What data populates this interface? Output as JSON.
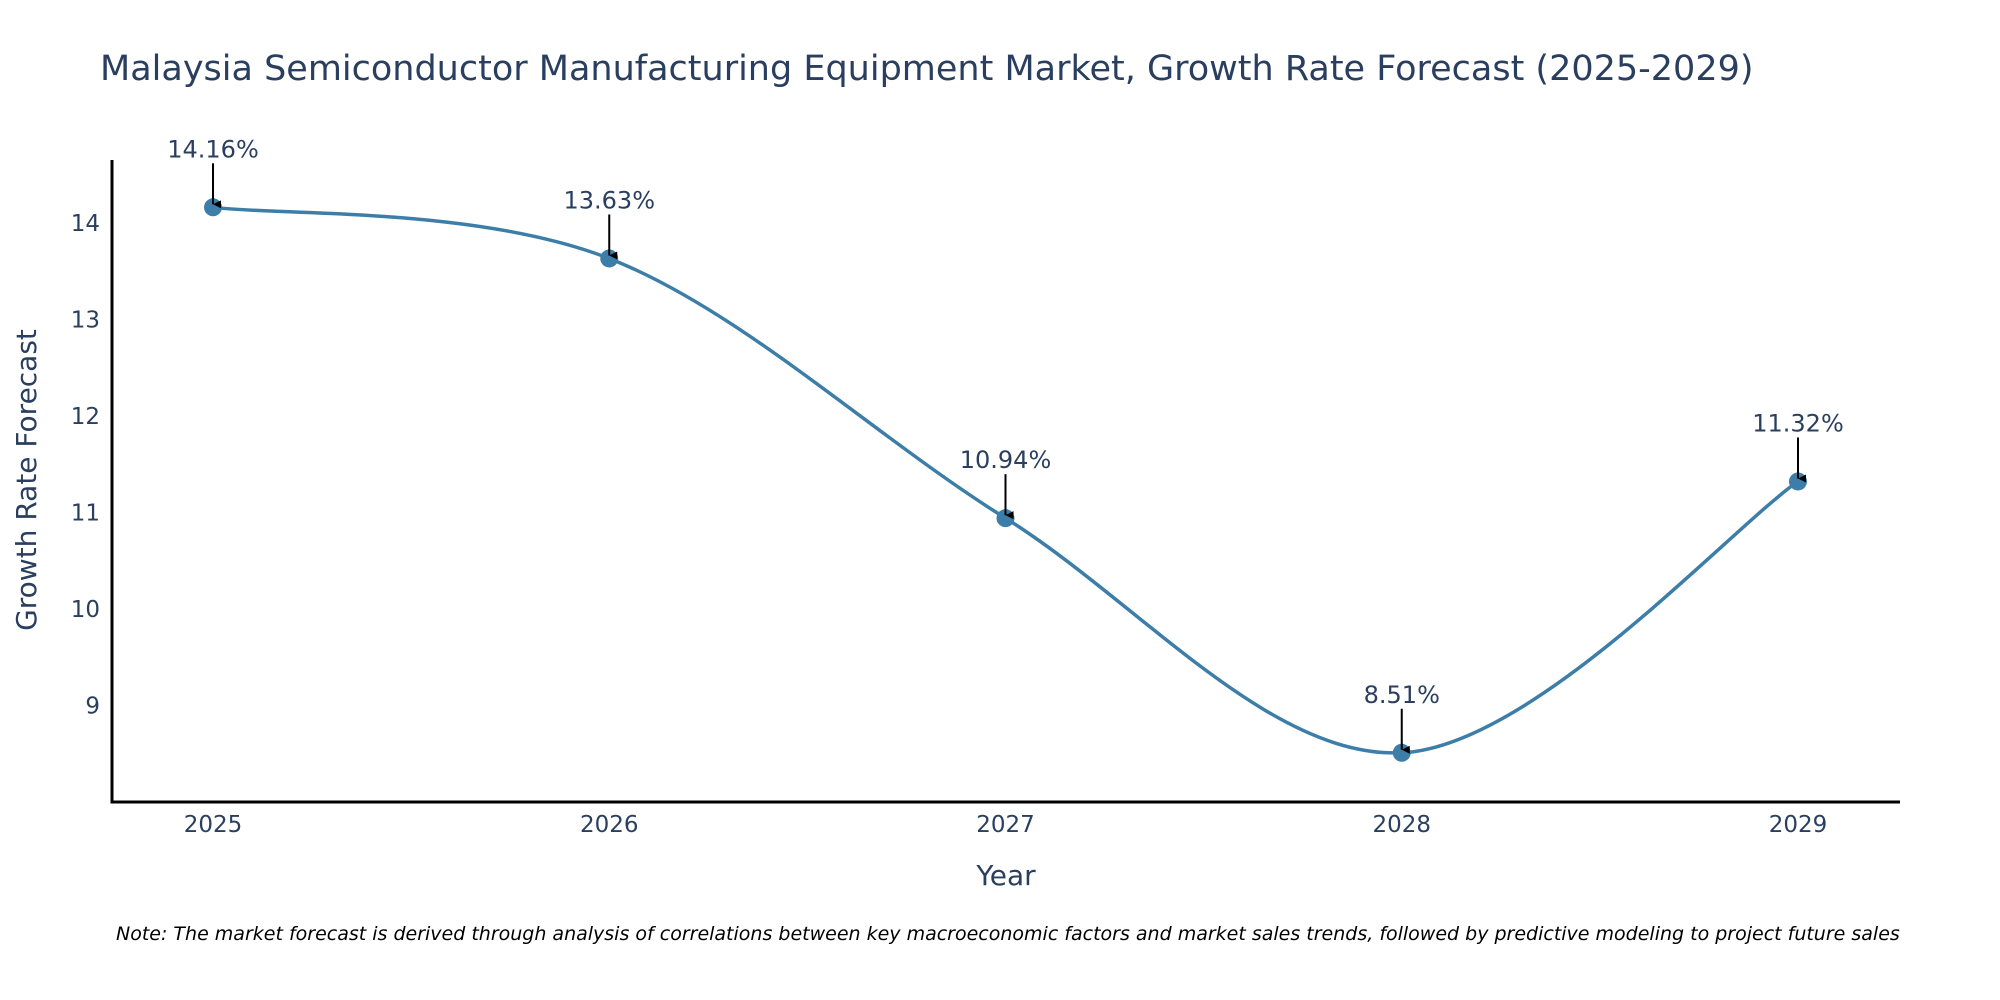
{
  "chart_data": {
    "type": "line",
    "title": "Malaysia Semiconductor Manufacturing Equipment Market, Growth Rate Forecast (2025-2029)",
    "xlabel": "Year",
    "ylabel": "Growth Rate Forecast",
    "categories": [
      "2025",
      "2026",
      "2027",
      "2028",
      "2029"
    ],
    "values": [
      14.16,
      13.63,
      10.94,
      8.51,
      11.32
    ],
    "data_labels": [
      "14.16%",
      "13.63%",
      "10.94%",
      "8.51%",
      "11.32%"
    ],
    "y_ticks": [
      9,
      10,
      11,
      12,
      13,
      14
    ],
    "ylim": [
      8,
      14.65
    ],
    "grid": false,
    "line_shape": "smooth spline",
    "colors": {
      "line": "#3d7ea9",
      "marker": "#3d7ea9",
      "arrow": "#000000",
      "axis": "#000000"
    }
  },
  "note": "Note: The market forecast is derived through analysis of correlations between key macroeconomic factors and market sales trends, followed by predictive modeling to project future sales"
}
